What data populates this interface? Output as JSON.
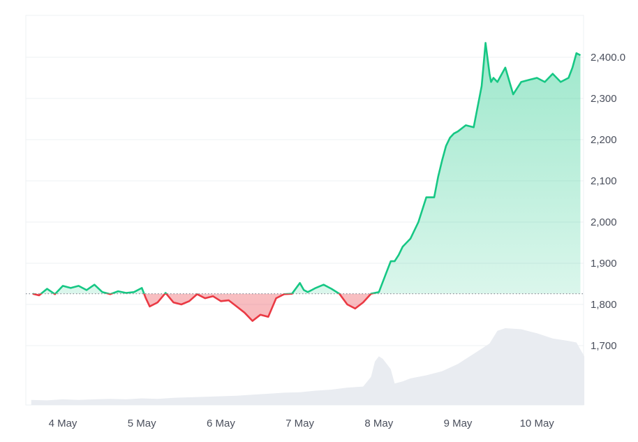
{
  "chart_data": {
    "type": "line",
    "title": "",
    "xlabel": "",
    "ylabel": "",
    "x_tick_labels": [
      "4 May",
      "5 May",
      "6 May",
      "7 May",
      "8 May",
      "9 May",
      "10 May"
    ],
    "y_tick_labels": [
      "1,700",
      "1,800",
      "1,900",
      "2,000",
      "2,100",
      "2,200",
      "2,300",
      "2,400.0"
    ],
    "y_ticks": [
      1700,
      1800,
      1900,
      2000,
      2100,
      2200,
      2300,
      2400
    ],
    "ylim": [
      1600,
      2500
    ],
    "xlim": [
      3.6,
      10.6
    ],
    "baseline": 1826,
    "grid": true,
    "colors": {
      "up": "#16c784",
      "down": "#ea3943",
      "up_fill": "#16c784",
      "down_fill": "#ea3943",
      "volume": "#e9ecf1",
      "grid": "#eef0f3",
      "baseline": "#8a8f98"
    },
    "series": [
      {
        "x": [
          3.62,
          3.7,
          3.8,
          3.9,
          4.0,
          4.1,
          4.2,
          4.3,
          4.4,
          4.5,
          4.6,
          4.7,
          4.8,
          4.9,
          5.0,
          5.05,
          5.1,
          5.2,
          5.3,
          5.4,
          5.5,
          5.6,
          5.7,
          5.8,
          5.9,
          6.0,
          6.1,
          6.2,
          6.3,
          6.4,
          6.5,
          6.6,
          6.7,
          6.8,
          6.9,
          7.0,
          7.05,
          7.1,
          7.15,
          7.2,
          7.3,
          7.4,
          7.5,
          7.6,
          7.7,
          7.8,
          7.9,
          8.0,
          8.1,
          8.15,
          8.2,
          8.25,
          8.3,
          8.4,
          8.5,
          8.6,
          8.7,
          8.75,
          8.8,
          8.85,
          8.9,
          8.95,
          9.0,
          9.1,
          9.2,
          9.3,
          9.35,
          9.4,
          9.42,
          9.45,
          9.5,
          9.6,
          9.7,
          9.8,
          9.9,
          10.0,
          10.1,
          10.2,
          10.3,
          10.4,
          10.45,
          10.5,
          10.55
        ],
        "y": [
          1826,
          1822,
          1838,
          1825,
          1845,
          1840,
          1845,
          1835,
          1848,
          1830,
          1825,
          1832,
          1828,
          1830,
          1840,
          1815,
          1795,
          1805,
          1828,
          1805,
          1800,
          1808,
          1825,
          1815,
          1820,
          1808,
          1810,
          1795,
          1780,
          1760,
          1775,
          1770,
          1815,
          1825,
          1826,
          1852,
          1835,
          1830,
          1835,
          1840,
          1848,
          1838,
          1826,
          1800,
          1790,
          1805,
          1826,
          1830,
          1880,
          1905,
          1905,
          1920,
          1940,
          1960,
          2000,
          2060,
          2060,
          2110,
          2150,
          2185,
          2205,
          2215,
          2220,
          2235,
          2230,
          2330,
          2435,
          2360,
          2340,
          2350,
          2340,
          2375,
          2310,
          2340,
          2345,
          2350,
          2340,
          2360,
          2340,
          2350,
          2375,
          2410,
          2405
        ]
      }
    ],
    "volume": {
      "x": [
        3.6,
        3.8,
        4.0,
        4.2,
        4.4,
        4.6,
        4.8,
        5.0,
        5.2,
        5.4,
        5.6,
        5.8,
        6.0,
        6.2,
        6.4,
        6.6,
        6.8,
        7.0,
        7.2,
        7.4,
        7.6,
        7.8,
        7.9,
        7.95,
        8.0,
        8.05,
        8.1,
        8.15,
        8.2,
        8.3,
        8.4,
        8.6,
        8.8,
        9.0,
        9.2,
        9.4,
        9.5,
        9.6,
        9.8,
        10.0,
        10.2,
        10.4,
        10.5,
        10.6
      ],
      "y": [
        10,
        9,
        11,
        10,
        11,
        12,
        11,
        13,
        12,
        14,
        15,
        16,
        17,
        18,
        20,
        22,
        24,
        25,
        28,
        30,
        34,
        36,
        55,
        85,
        95,
        90,
        80,
        70,
        42,
        46,
        52,
        58,
        66,
        80,
        100,
        120,
        145,
        150,
        148,
        140,
        130,
        125,
        122,
        95
      ]
    }
  }
}
